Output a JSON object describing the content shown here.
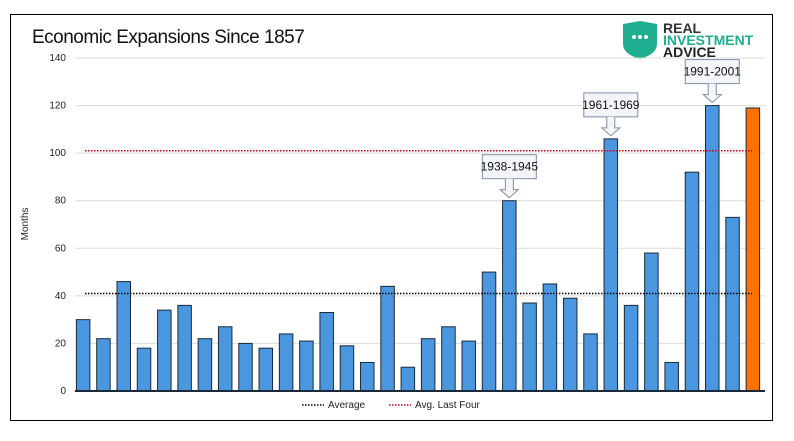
{
  "logo": {
    "line1": "REAL",
    "line2": "INVESTMENT",
    "line3": "ADVICE",
    "brand_color": "#1fae8f"
  },
  "chart_data": {
    "type": "bar",
    "title": "Economic Expansions Since 1857",
    "ylabel": "Months",
    "xlabel": "",
    "ylim": [
      0,
      140
    ],
    "yticks": [
      0,
      20,
      40,
      60,
      80,
      100,
      120,
      140
    ],
    "grid": true,
    "values": [
      30,
      22,
      46,
      18,
      34,
      36,
      22,
      27,
      20,
      18,
      24,
      21,
      33,
      19,
      12,
      44,
      10,
      22,
      27,
      21,
      50,
      80,
      37,
      45,
      39,
      24,
      106,
      36,
      58,
      12,
      92,
      120,
      73,
      119
    ],
    "bar_color": "#4a97e0",
    "highlight_color": "#ff7000",
    "highlight_index": 33,
    "reference_lines": [
      {
        "name": "Average",
        "value": 41,
        "color": "#000000",
        "style": "dotted"
      },
      {
        "name": "Avg. Last Four",
        "value": 101,
        "color": "#c0001a",
        "style": "dotted"
      }
    ],
    "legend_placement": "bottom",
    "annotations": [
      {
        "text": "1938-1945",
        "bar_index": 21
      },
      {
        "text": "1961-1969",
        "bar_index": 26
      },
      {
        "text": "1991-2001",
        "bar_index": 31
      }
    ]
  }
}
